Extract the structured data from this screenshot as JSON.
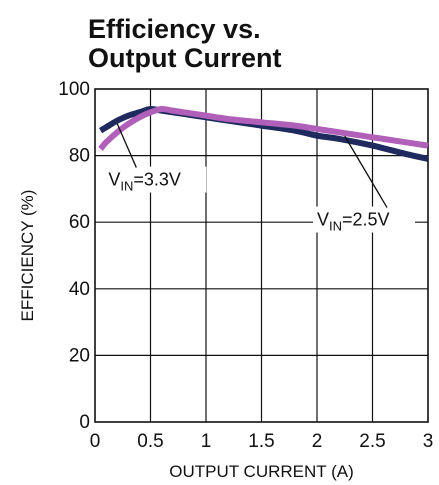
{
  "chart_data": {
    "type": "line",
    "title_lines": [
      "Efficiency vs.",
      "Output Current"
    ],
    "xlabel": "OUTPUT CURRENT (A)",
    "ylabel": "EFFICIENCY (%)",
    "xlim": [
      0,
      3
    ],
    "ylim": [
      0,
      100
    ],
    "x_ticks": [
      0,
      0.5,
      1,
      1.5,
      2,
      2.5,
      3
    ],
    "x_tick_labels": [
      "0",
      "0.5",
      "1",
      "1.5",
      "2",
      "2.5",
      "3"
    ],
    "y_ticks": [
      0,
      20,
      40,
      60,
      80,
      100
    ],
    "y_tick_labels": [
      "0",
      "20",
      "40",
      "60",
      "80",
      "100"
    ],
    "grid": true,
    "series": [
      {
        "name": "VIN=3.3V",
        "color": "#1f2a5e",
        "x": [
          0.05,
          0.1,
          0.2,
          0.3,
          0.4,
          0.5,
          0.6,
          0.8,
          1.0,
          1.2,
          1.5,
          1.8,
          2.0,
          2.2,
          2.5,
          2.8,
          3.0
        ],
        "y": [
          87.5,
          88.5,
          90.5,
          92,
          93,
          94,
          93.5,
          92.5,
          91.5,
          90.5,
          89,
          87.5,
          86,
          85,
          83,
          80.5,
          79
        ]
      },
      {
        "name": "VIN=2.5V",
        "color": "#b060b8",
        "x": [
          0.05,
          0.1,
          0.2,
          0.3,
          0.4,
          0.5,
          0.6,
          0.7,
          0.8,
          1.0,
          1.2,
          1.5,
          1.8,
          2.0,
          2.2,
          2.5,
          2.8,
          3.0
        ],
        "y": [
          82,
          84,
          87,
          89.5,
          91.5,
          93,
          94,
          93.5,
          93,
          92,
          91,
          90,
          89,
          88,
          87,
          85.5,
          84,
          83
        ]
      }
    ],
    "annotations": [
      {
        "label_main": "V",
        "label_sub": "IN",
        "label_rest": "=3.3V",
        "series": 0,
        "point_x": 0.2,
        "text_x": 0.12,
        "text_y": 71
      },
      {
        "label_main": "V",
        "label_sub": "IN",
        "label_rest": "=2.5V",
        "series": 1,
        "point_x": 2.25,
        "text_x": 2.0,
        "text_y": 59
      }
    ]
  }
}
